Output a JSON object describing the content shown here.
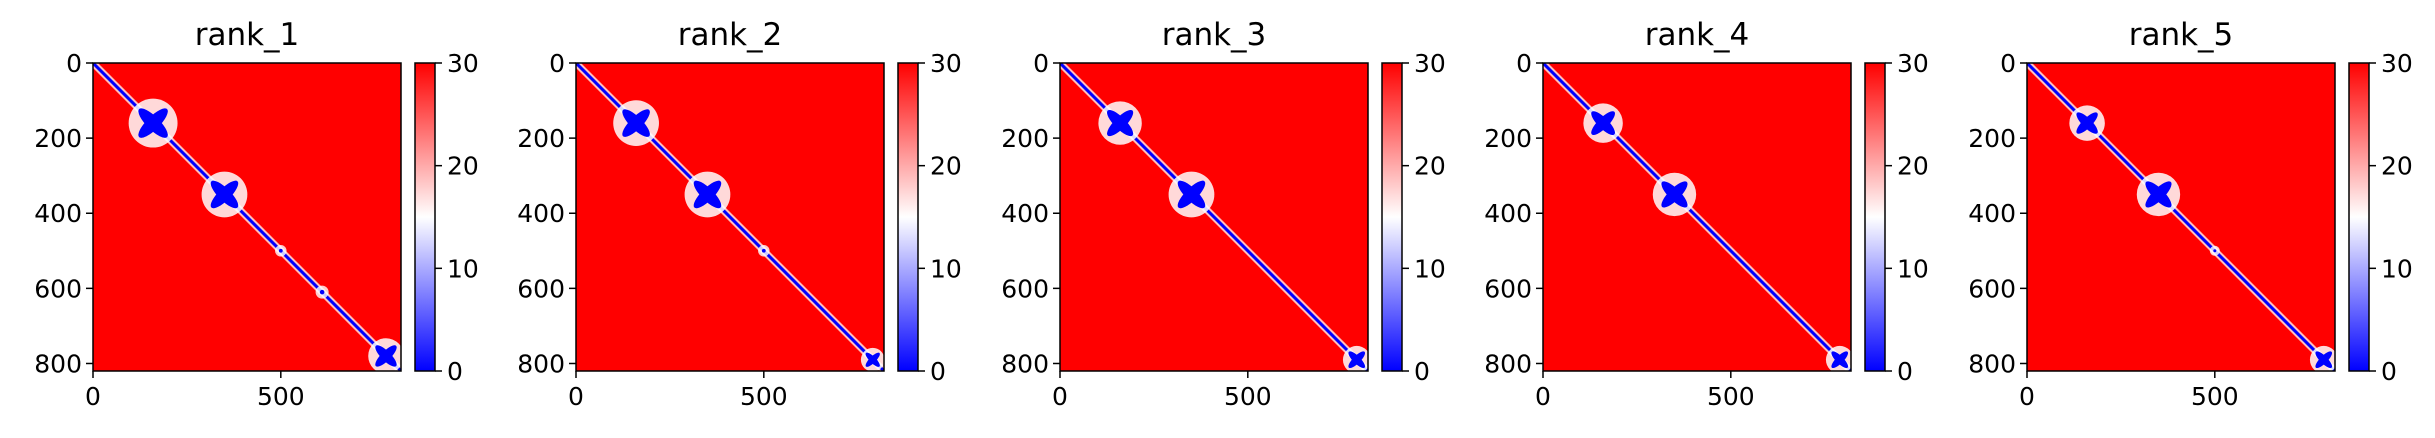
{
  "colors": {
    "low": "#0000ff",
    "mid": "#ffffff",
    "high": "#ff0000",
    "axis": "#000000",
    "background": "#ffffff"
  },
  "chart_data": [
    {
      "type": "heatmap",
      "title": "rank_1",
      "xlabel": "",
      "ylabel": "",
      "xlim": [
        0,
        820
      ],
      "ylim": [
        820,
        0
      ],
      "x_ticks": [
        0,
        500
      ],
      "y_ticks": [
        0,
        200,
        400,
        600,
        800
      ],
      "colorbar": {
        "range": [
          0,
          30
        ],
        "ticks": [
          0,
          10,
          20,
          30
        ],
        "colormap": "bwr"
      },
      "features": [
        {
          "center": 160,
          "size": 62
        },
        {
          "center": 350,
          "size": 58
        },
        {
          "center": 500,
          "size": 10
        },
        {
          "center": 610,
          "size": 12
        },
        {
          "center": 780,
          "size": 45
        }
      ]
    },
    {
      "type": "heatmap",
      "title": "rank_2",
      "xlabel": "",
      "ylabel": "",
      "xlim": [
        0,
        820
      ],
      "ylim": [
        820,
        0
      ],
      "x_ticks": [
        0,
        500
      ],
      "y_ticks": [
        0,
        200,
        400,
        600,
        800
      ],
      "colorbar": {
        "range": [
          0,
          30
        ],
        "ticks": [
          0,
          10,
          20,
          30
        ],
        "colormap": "bwr"
      },
      "features": [
        {
          "center": 160,
          "size": 58
        },
        {
          "center": 350,
          "size": 58
        },
        {
          "center": 500,
          "size": 10
        },
        {
          "center": 790,
          "size": 30
        }
      ]
    },
    {
      "type": "heatmap",
      "title": "rank_3",
      "xlabel": "",
      "ylabel": "",
      "xlim": [
        0,
        820
      ],
      "ylim": [
        820,
        0
      ],
      "x_ticks": [
        0,
        500
      ],
      "y_ticks": [
        0,
        200,
        400,
        600,
        800
      ],
      "colorbar": {
        "range": [
          0,
          30
        ],
        "ticks": [
          0,
          10,
          20,
          30
        ],
        "colormap": "bwr"
      },
      "features": [
        {
          "center": 160,
          "size": 55
        },
        {
          "center": 350,
          "size": 58
        },
        {
          "center": 790,
          "size": 35
        }
      ]
    },
    {
      "type": "heatmap",
      "title": "rank_4",
      "xlabel": "",
      "ylabel": "",
      "xlim": [
        0,
        820
      ],
      "ylim": [
        820,
        0
      ],
      "x_ticks": [
        0,
        500
      ],
      "y_ticks": [
        0,
        200,
        400,
        600,
        800
      ],
      "colorbar": {
        "range": [
          0,
          30
        ],
        "ticks": [
          0,
          10,
          20,
          30
        ],
        "colormap": "bwr"
      },
      "features": [
        {
          "center": 160,
          "size": 50
        },
        {
          "center": 350,
          "size": 55
        },
        {
          "center": 790,
          "size": 35
        }
      ]
    },
    {
      "type": "heatmap",
      "title": "rank_5",
      "xlabel": "",
      "ylabel": "",
      "xlim": [
        0,
        820
      ],
      "ylim": [
        820,
        0
      ],
      "x_ticks": [
        0,
        500
      ],
      "y_ticks": [
        0,
        200,
        400,
        600,
        800
      ],
      "colorbar": {
        "range": [
          0,
          30
        ],
        "ticks": [
          0,
          10,
          20,
          30
        ],
        "colormap": "bwr"
      },
      "features": [
        {
          "center": 160,
          "size": 45
        },
        {
          "center": 350,
          "size": 55
        },
        {
          "center": 500,
          "size": 8
        },
        {
          "center": 790,
          "size": 35
        }
      ]
    }
  ]
}
